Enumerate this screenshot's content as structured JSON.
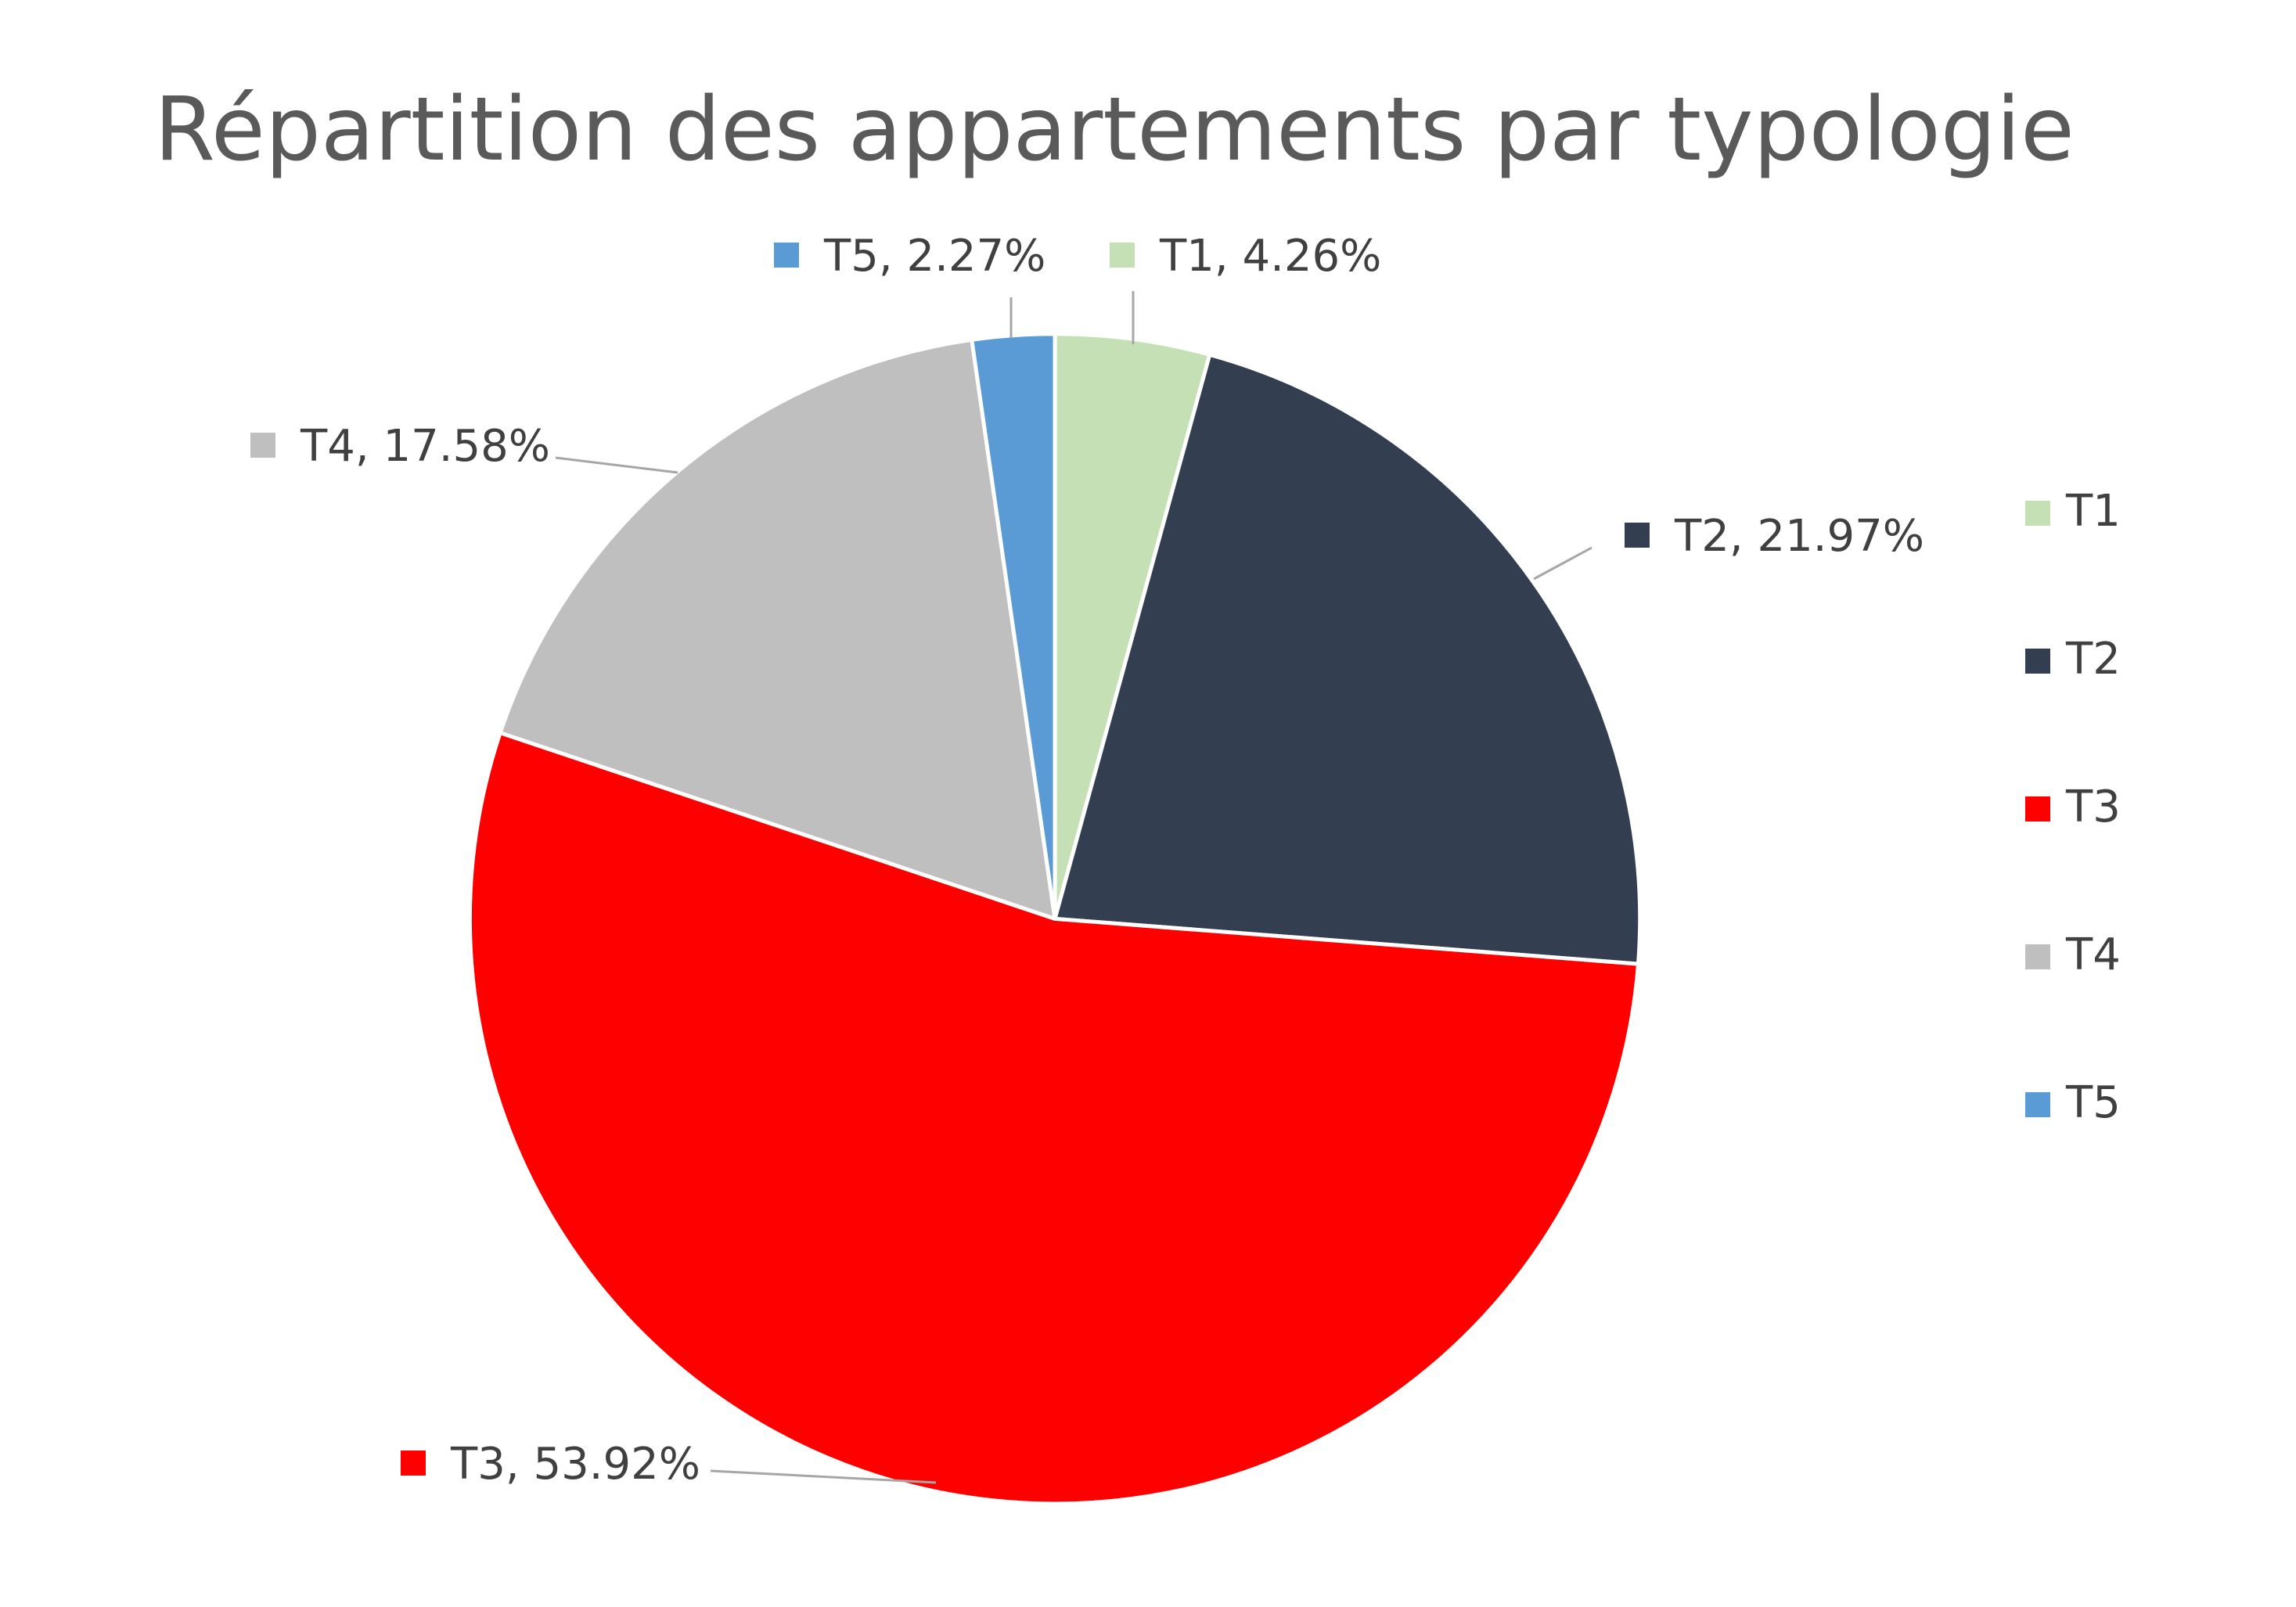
{
  "chart_data": {
    "type": "pie",
    "title": "Répartition des appartements par typologie",
    "categories": [
      "T1",
      "T2",
      "T3",
      "T4",
      "T5"
    ],
    "values": [
      4.26,
      21.97,
      53.92,
      17.58,
      2.27
    ],
    "unit": "%",
    "data_labels": [
      "T1, 4.26%",
      "T2, 21.97%",
      "T3, 53.92%",
      "T4, 17.58%",
      "T5, 2.27%"
    ],
    "colors": [
      "#c5e0b4",
      "#333f50",
      "#ff0000",
      "#bfbfbf",
      "#5b9bd5"
    ],
    "start_angle": "12 o'clock",
    "direction": "clockwise",
    "legend": {
      "position": "right",
      "entries": [
        "T1",
        "T2",
        "T3",
        "T4",
        "T5"
      ]
    }
  }
}
